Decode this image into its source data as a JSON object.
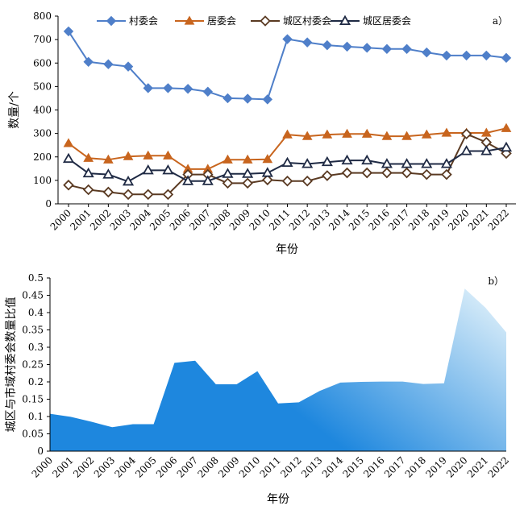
{
  "chart_data": [
    {
      "type": "line",
      "panel_label": "a）",
      "ylabel": "数量/个",
      "xlabel": "年份",
      "ylim": [
        0,
        800
      ],
      "yticks": [
        0,
        100,
        200,
        300,
        400,
        500,
        600,
        700,
        800
      ],
      "legend_position": "top",
      "grid": false,
      "categories": [
        "2000",
        "2001",
        "2002",
        "2003",
        "2004",
        "2005",
        "2006",
        "2007",
        "2008",
        "2009",
        "2010",
        "2011",
        "2012",
        "2013",
        "2014",
        "2015",
        "2016",
        "2017",
        "2018",
        "2019",
        "2020",
        "2021",
        "2022"
      ],
      "series": [
        {
          "name": "村委会",
          "color": "#4F7FC9",
          "marker": "diamond-filled",
          "values": [
            735,
            605,
            595,
            585,
            493,
            493,
            490,
            478,
            450,
            448,
            445,
            702,
            688,
            676,
            670,
            665,
            660,
            660,
            645,
            632,
            632,
            632,
            622
          ]
        },
        {
          "name": "居委会",
          "color": "#C8651E",
          "marker": "triangle-filled",
          "values": [
            258,
            195,
            188,
            202,
            205,
            205,
            148,
            148,
            188,
            188,
            190,
            295,
            288,
            295,
            298,
            298,
            288,
            288,
            295,
            302,
            302,
            302,
            322
          ]
        },
        {
          "name": "城区村委会",
          "color": "#5A3A22",
          "marker": "diamond-open",
          "values": [
            80,
            60,
            50,
            40,
            40,
            40,
            125,
            125,
            88,
            88,
            102,
            97,
            97,
            120,
            132,
            132,
            132,
            132,
            125,
            125,
            298,
            262,
            215
          ]
        },
        {
          "name": "城区居委会",
          "color": "#1F2A44",
          "marker": "triangle-open",
          "values": [
            192,
            130,
            125,
            95,
            143,
            143,
            97,
            97,
            128,
            128,
            132,
            175,
            170,
            178,
            185,
            185,
            170,
            170,
            170,
            170,
            225,
            225,
            240
          ]
        }
      ]
    },
    {
      "type": "area",
      "panel_label": "b）",
      "ylabel": "城区与市域村委会数量比值",
      "xlabel": "年份",
      "ylim": [
        0,
        0.5
      ],
      "yticks": [
        "0",
        "0.05",
        "0.1",
        "0.15",
        "0.2",
        "0.25",
        "0.3",
        "0.35",
        "0.4",
        "0.45",
        "0.5"
      ],
      "grid": false,
      "categories": [
        "2000",
        "2001",
        "2002",
        "2003",
        "2004",
        "2005",
        "2006",
        "2007",
        "2008",
        "2009",
        "2010",
        "2011",
        "2012",
        "2013",
        "2014",
        "2015",
        "2016",
        "2017",
        "2018",
        "2019",
        "2020",
        "2021",
        "2022"
      ],
      "values": [
        0.108,
        0.099,
        0.085,
        0.069,
        0.078,
        0.078,
        0.255,
        0.261,
        0.193,
        0.193,
        0.231,
        0.138,
        0.141,
        0.174,
        0.198,
        0.2,
        0.201,
        0.201,
        0.194,
        0.196,
        0.469,
        0.414,
        0.343
      ],
      "colors": {
        "top": "#E6F4FB",
        "bottom": "#1E87DE"
      }
    }
  ]
}
